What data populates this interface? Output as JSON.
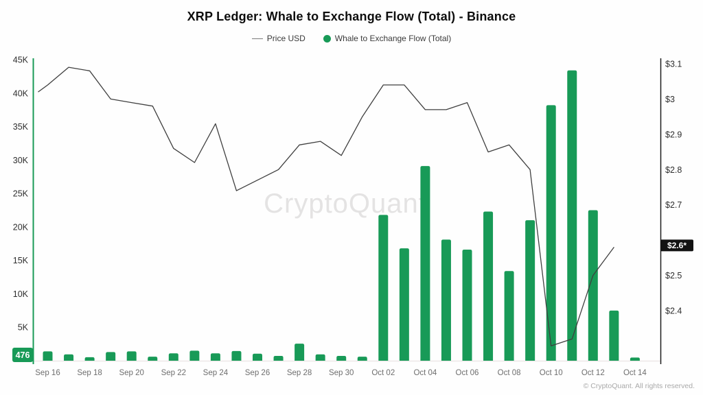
{
  "title": "XRP Ledger: Whale to Exchange Flow (Total) - Binance",
  "legend": [
    {
      "label": "Price USD",
      "swatch": "line",
      "color": "#7a7a7a"
    },
    {
      "label": "Whale to Exchange Flow (Total)",
      "swatch": "dot",
      "color": "#189a57"
    }
  ],
  "watermark": "CryptoQuant",
  "footer": "© CryptoQuant. All rights reserved.",
  "colors": {
    "bar_green": "#189a57",
    "price_line": "#3f3f3f",
    "left_axis_line": "#189a57",
    "right_axis_line": "#1b1b1b",
    "baseline": "#ece8e8",
    "tick_label": "#2e2e2e",
    "x_label": "#6e6e6e",
    "badge_left_bg": "#189a57",
    "badge_right_bg": "#121212",
    "badge_text": "#ffffff",
    "watermark": "#e4e3e3"
  },
  "chart_data": {
    "type": "bar",
    "title": "XRP Ledger: Whale to Exchange Flow (Total) - Binance",
    "categories": [
      "Sep 16",
      "Sep 17",
      "Sep 18",
      "Sep 19",
      "Sep 20",
      "Sep 21",
      "Sep 22",
      "Sep 23",
      "Sep 24",
      "Sep 25",
      "Sep 26",
      "Sep 27",
      "Sep 28",
      "Sep 29",
      "Sep 30",
      "Oct 01",
      "Oct 02",
      "Oct 03",
      "Oct 04",
      "Oct 05",
      "Oct 06",
      "Oct 07",
      "Oct 08",
      "Oct 09",
      "Oct 10",
      "Oct 11",
      "Oct 12",
      "Oct 13",
      "Oct 14"
    ],
    "x_tick_labels": [
      "Sep 16",
      "Sep 18",
      "Sep 20",
      "Sep 22",
      "Sep 24",
      "Sep 26",
      "Sep 28",
      "Sep 30",
      "Oct 02",
      "Oct 04",
      "Oct 06",
      "Oct 08",
      "Oct 10",
      "Oct 12",
      "Oct 14"
    ],
    "series": [
      {
        "name": "Whale to Exchange Flow (Total)",
        "type": "bar",
        "axis": "left",
        "values": [
          1400,
          950,
          520,
          1300,
          1400,
          600,
          1100,
          1500,
          1100,
          1450,
          1050,
          720,
          2550,
          950,
          720,
          600,
          21800,
          16800,
          29100,
          18100,
          16600,
          22300,
          13400,
          21000,
          38200,
          43400,
          22500,
          7500,
          476
        ]
      },
      {
        "name": "Price USD",
        "type": "line",
        "axis": "right",
        "values": [
          3.04,
          3.09,
          3.08,
          3.0,
          2.99,
          2.98,
          2.86,
          2.82,
          2.93,
          2.74,
          2.77,
          2.8,
          2.87,
          2.88,
          2.84,
          2.95,
          3.04,
          3.04,
          2.97,
          2.97,
          2.99,
          2.85,
          2.87,
          2.8,
          2.3,
          2.32,
          2.5,
          2.58,
          null
        ]
      }
    ],
    "price_edge_start": 3.02,
    "left_axis": {
      "tick_labels": [
        "5K",
        "10K",
        "15K",
        "20K",
        "25K",
        "30K",
        "35K",
        "40K",
        "45K"
      ],
      "tick_values": [
        5000,
        10000,
        15000,
        20000,
        25000,
        30000,
        35000,
        40000,
        45000
      ],
      "range": [
        0,
        45200
      ],
      "current_badge": "476"
    },
    "right_axis": {
      "tick_labels": [
        "$2.4",
        "$2.5",
        "$2.6*",
        "$2.7",
        "$2.8",
        "$2.9",
        "$3",
        "$3.1"
      ],
      "tick_values": [
        2.4,
        2.5,
        2.6,
        2.7,
        2.8,
        2.9,
        3.0,
        3.1
      ],
      "range": [
        2.24,
        3.12
      ],
      "current_badge": "$2.6*",
      "current_badge_value": 2.585
    },
    "grid": "off",
    "legend_position": "top-center"
  }
}
